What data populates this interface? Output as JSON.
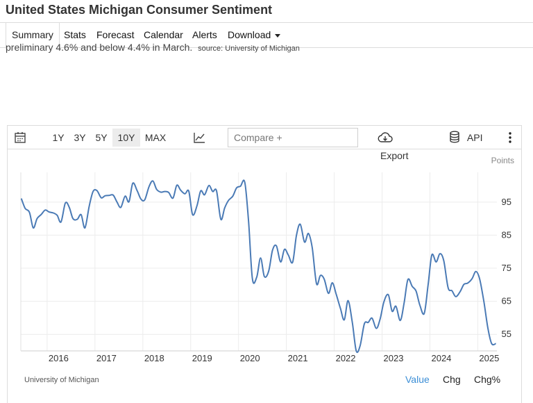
{
  "page": {
    "title": "United States Michigan Consumer Sentiment",
    "description": "preliminary 4.6% and below 4.4% in March.",
    "source": "source: University of Michigan"
  },
  "tabs": [
    {
      "label": "Summary",
      "active": true
    },
    {
      "label": "Stats"
    },
    {
      "label": "Forecast"
    },
    {
      "label": "Calendar"
    },
    {
      "label": "Alerts"
    },
    {
      "label": "Download"
    }
  ],
  "toolbar": {
    "ranges": [
      "1Y",
      "3Y",
      "5Y",
      "10Y",
      "MAX"
    ],
    "active_range": "10Y",
    "compare_placeholder": "Compare +",
    "export_label": "Export",
    "api_label": "API"
  },
  "footer": {
    "source": "University of Michigan",
    "value_label": "Value",
    "chg_label": "Chg",
    "chgpct_label": "Chg%"
  },
  "colors": {
    "line": "#4a7ab5",
    "accent": "#3b8ed6",
    "grid": "#ececec"
  },
  "chart_data": {
    "type": "line",
    "unit_label": "Points",
    "ylim": [
      50,
      104
    ],
    "y_ticks": [
      55,
      65,
      75,
      85,
      95
    ],
    "x_tick_labels": [
      "2016",
      "2017",
      "2018",
      "2019",
      "2020",
      "2021",
      "2022",
      "2023",
      "2024",
      "2025"
    ],
    "grid": true,
    "series": [
      {
        "points": [
          [
            2015.46,
            96.1
          ],
          [
            2015.54,
            93.1
          ],
          [
            2015.63,
            91.9
          ],
          [
            2015.71,
            87.2
          ],
          [
            2015.79,
            90.0
          ],
          [
            2015.88,
            91.3
          ],
          [
            2015.96,
            92.6
          ],
          [
            2016.04,
            92.0
          ],
          [
            2016.13,
            91.7
          ],
          [
            2016.21,
            91.0
          ],
          [
            2016.29,
            89.0
          ],
          [
            2016.38,
            94.7
          ],
          [
            2016.46,
            93.5
          ],
          [
            2016.54,
            90.0
          ],
          [
            2016.63,
            89.8
          ],
          [
            2016.71,
            91.2
          ],
          [
            2016.79,
            87.2
          ],
          [
            2016.88,
            93.8
          ],
          [
            2016.96,
            98.2
          ],
          [
            2017.04,
            98.5
          ],
          [
            2017.13,
            96.3
          ],
          [
            2017.21,
            96.9
          ],
          [
            2017.29,
            97.0
          ],
          [
            2017.38,
            97.1
          ],
          [
            2017.46,
            95.0
          ],
          [
            2017.54,
            93.4
          ],
          [
            2017.63,
            96.8
          ],
          [
            2017.71,
            95.1
          ],
          [
            2017.79,
            100.7
          ],
          [
            2017.88,
            98.5
          ],
          [
            2017.96,
            95.9
          ],
          [
            2018.04,
            95.7
          ],
          [
            2018.13,
            99.7
          ],
          [
            2018.21,
            101.4
          ],
          [
            2018.29,
            98.8
          ],
          [
            2018.38,
            98.0
          ],
          [
            2018.46,
            98.2
          ],
          [
            2018.54,
            97.9
          ],
          [
            2018.63,
            96.2
          ],
          [
            2018.71,
            100.1
          ],
          [
            2018.79,
            98.6
          ],
          [
            2018.88,
            97.5
          ],
          [
            2018.96,
            98.3
          ],
          [
            2019.04,
            91.2
          ],
          [
            2019.13,
            93.8
          ],
          [
            2019.21,
            98.4
          ],
          [
            2019.29,
            97.2
          ],
          [
            2019.38,
            100.0
          ],
          [
            2019.46,
            98.2
          ],
          [
            2019.54,
            98.4
          ],
          [
            2019.63,
            89.8
          ],
          [
            2019.71,
            93.2
          ],
          [
            2019.79,
            95.5
          ],
          [
            2019.88,
            96.8
          ],
          [
            2019.96,
            99.3
          ],
          [
            2020.04,
            99.8
          ],
          [
            2020.13,
            101.0
          ],
          [
            2020.21,
            89.1
          ],
          [
            2020.29,
            71.8
          ],
          [
            2020.38,
            72.3
          ],
          [
            2020.46,
            78.1
          ],
          [
            2020.54,
            72.5
          ],
          [
            2020.63,
            74.1
          ],
          [
            2020.71,
            80.4
          ],
          [
            2020.79,
            81.8
          ],
          [
            2020.88,
            76.9
          ],
          [
            2020.96,
            80.7
          ],
          [
            2021.04,
            79.0
          ],
          [
            2021.13,
            76.8
          ],
          [
            2021.21,
            84.9
          ],
          [
            2021.29,
            88.3
          ],
          [
            2021.38,
            82.9
          ],
          [
            2021.46,
            85.5
          ],
          [
            2021.54,
            81.2
          ],
          [
            2021.63,
            70.3
          ],
          [
            2021.71,
            72.8
          ],
          [
            2021.79,
            71.7
          ],
          [
            2021.88,
            67.4
          ],
          [
            2021.96,
            70.6
          ],
          [
            2022.04,
            67.2
          ],
          [
            2022.13,
            62.8
          ],
          [
            2022.21,
            59.4
          ],
          [
            2022.29,
            65.2
          ],
          [
            2022.38,
            58.4
          ],
          [
            2022.46,
            50.0
          ],
          [
            2022.54,
            51.5
          ],
          [
            2022.63,
            58.2
          ],
          [
            2022.71,
            58.6
          ],
          [
            2022.79,
            59.9
          ],
          [
            2022.88,
            56.8
          ],
          [
            2022.96,
            59.7
          ],
          [
            2023.04,
            64.9
          ],
          [
            2023.13,
            67.0
          ],
          [
            2023.21,
            62.0
          ],
          [
            2023.29,
            63.5
          ],
          [
            2023.38,
            59.2
          ],
          [
            2023.46,
            64.4
          ],
          [
            2023.54,
            71.6
          ],
          [
            2023.63,
            69.5
          ],
          [
            2023.71,
            68.1
          ],
          [
            2023.79,
            63.8
          ],
          [
            2023.88,
            61.3
          ],
          [
            2023.96,
            69.7
          ],
          [
            2024.04,
            79.0
          ],
          [
            2024.13,
            76.9
          ],
          [
            2024.21,
            79.4
          ],
          [
            2024.29,
            77.2
          ],
          [
            2024.38,
            69.1
          ],
          [
            2024.46,
            68.2
          ],
          [
            2024.54,
            66.4
          ],
          [
            2024.63,
            67.9
          ],
          [
            2024.71,
            70.1
          ],
          [
            2024.79,
            70.5
          ],
          [
            2024.88,
            71.8
          ],
          [
            2024.96,
            74.0
          ],
          [
            2025.04,
            71.7
          ],
          [
            2025.13,
            64.7
          ],
          [
            2025.21,
            57.0
          ],
          [
            2025.29,
            52.2
          ],
          [
            2025.38,
            52.2
          ]
        ]
      }
    ]
  }
}
